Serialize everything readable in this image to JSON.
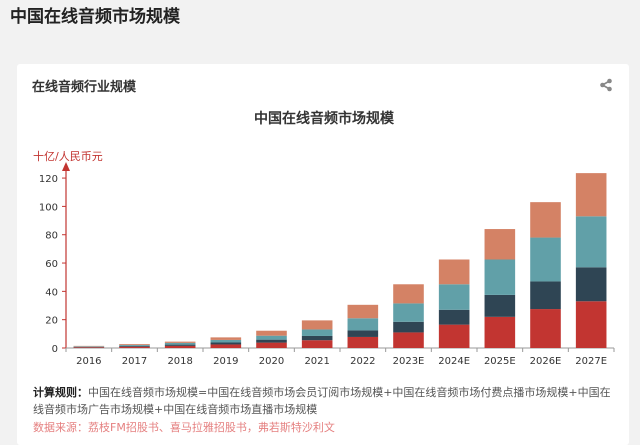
{
  "page": {
    "title": "中国在线音频市场规模"
  },
  "card": {
    "title": "在线音频行业规模",
    "share_icon": "share-icon"
  },
  "chart_data": {
    "type": "bar",
    "stacked": true,
    "title": "中国在线音频市场规模",
    "ylabel": "十亿/人民币元",
    "xlabel": "",
    "ylim": [
      0,
      125
    ],
    "yticks": [
      0,
      20,
      40,
      60,
      80,
      100,
      120
    ],
    "categories": [
      "2016",
      "2017",
      "2018",
      "2019",
      "2020",
      "2021",
      "2022",
      "2023E",
      "2024E",
      "2025E",
      "2026E",
      "2027E"
    ],
    "series": [
      {
        "values": [
          0.5,
          0.9,
          1.5,
          2.5,
          3.8,
          5.5,
          7.8,
          11,
          16.5,
          22,
          27.5,
          33
        ],
        "color": "#c23531"
      },
      {
        "values": [
          0.3,
          0.6,
          0.9,
          1.4,
          2.1,
          3.0,
          4.6,
          7.5,
          10.5,
          15.5,
          19.5,
          24
        ],
        "color": "#2f4554"
      },
      {
        "values": [
          0.4,
          0.7,
          1.2,
          1.8,
          2.8,
          4.6,
          8.6,
          13,
          18,
          25,
          31,
          36
        ],
        "color": "#61a0a8"
      },
      {
        "values": [
          0.3,
          0.6,
          0.9,
          1.8,
          3.5,
          6.4,
          9.5,
          13.5,
          17.5,
          21.5,
          25,
          30.5
        ],
        "color": "#d48265"
      }
    ],
    "grid": false,
    "axis_color": "#c23531"
  },
  "footer": {
    "rule_label": "计算规则：",
    "rule_text": "中国在线音频市场规模=中国在线音频市场会员订阅市场规模+中国在线音频市场付费点播市场规模+中国在线音频市场广告市场规模+中国在线音频市场直播市场规模",
    "source_label": "数据来源：",
    "source_text": "荔枝FM招股书、喜马拉雅招股书，弗若斯特沙利文"
  }
}
